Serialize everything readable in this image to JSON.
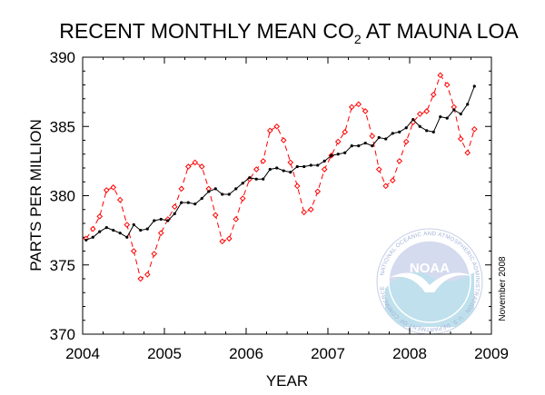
{
  "chart_data": {
    "type": "line",
    "title": {
      "main": "RECENT MONTHLY MEAN CO",
      "subscript": "2",
      "suffix": " AT MAUNA LOA"
    },
    "xlabel": "YEAR",
    "ylabel": "PARTS PER MILLION",
    "xlim": [
      2004,
      2009
    ],
    "ylim": [
      370,
      390
    ],
    "x_ticks": [
      2004,
      2005,
      2006,
      2007,
      2008,
      2009
    ],
    "y_ticks": [
      370,
      375,
      380,
      385,
      390
    ],
    "grid": false,
    "series": [
      {
        "style": "dashed-red-diamond",
        "color": "#ff0000",
        "x": [
          2004.042,
          2004.125,
          2004.208,
          2004.292,
          2004.375,
          2004.458,
          2004.542,
          2004.625,
          2004.708,
          2004.792,
          2004.875,
          2004.958,
          2005.042,
          2005.125,
          2005.208,
          2005.292,
          2005.375,
          2005.458,
          2005.542,
          2005.625,
          2005.708,
          2005.792,
          2005.875,
          2005.958,
          2006.042,
          2006.125,
          2006.208,
          2006.292,
          2006.375,
          2006.458,
          2006.542,
          2006.625,
          2006.708,
          2006.792,
          2006.875,
          2006.958,
          2007.042,
          2007.125,
          2007.208,
          2007.292,
          2007.375,
          2007.458,
          2007.542,
          2007.625,
          2007.708,
          2007.792,
          2007.875,
          2007.958,
          2008.042,
          2008.125,
          2008.208,
          2008.292,
          2008.375,
          2008.458,
          2008.542,
          2008.625,
          2008.708,
          2008.792
        ],
        "values": [
          376.9,
          377.6,
          378.5,
          380.4,
          380.6,
          379.7,
          377.9,
          376.0,
          374.0,
          374.3,
          375.8,
          377.3,
          378.3,
          379.2,
          380.5,
          382.1,
          382.4,
          382.1,
          380.5,
          378.6,
          376.7,
          376.9,
          378.3,
          379.8,
          381.2,
          381.9,
          382.5,
          384.7,
          385.0,
          384.0,
          382.4,
          380.7,
          378.8,
          379.0,
          380.3,
          381.9,
          382.9,
          383.9,
          384.6,
          386.4,
          386.6,
          386.1,
          384.3,
          381.9,
          380.7,
          381.1,
          382.5,
          383.9,
          385.3,
          385.9,
          386.1,
          387.3,
          388.7,
          388.0,
          386.4,
          384.1,
          383.1,
          384.8
        ]
      },
      {
        "style": "solid-black-dot",
        "color": "#000000",
        "x": [
          2004.042,
          2004.125,
          2004.208,
          2004.292,
          2004.375,
          2004.458,
          2004.542,
          2004.625,
          2004.708,
          2004.792,
          2004.875,
          2004.958,
          2005.042,
          2005.125,
          2005.208,
          2005.292,
          2005.375,
          2005.458,
          2005.542,
          2005.625,
          2005.708,
          2005.792,
          2005.875,
          2005.958,
          2006.042,
          2006.125,
          2006.208,
          2006.292,
          2006.375,
          2006.458,
          2006.542,
          2006.625,
          2006.708,
          2006.792,
          2006.875,
          2006.958,
          2007.042,
          2007.125,
          2007.208,
          2007.292,
          2007.375,
          2007.458,
          2007.542,
          2007.625,
          2007.708,
          2007.792,
          2007.875,
          2007.958,
          2008.042,
          2008.125,
          2008.208,
          2008.292,
          2008.375,
          2008.458,
          2008.542,
          2008.625,
          2008.708,
          2008.792
        ],
        "values": [
          376.8,
          377.0,
          377.4,
          377.7,
          377.5,
          377.3,
          377.0,
          377.9,
          377.5,
          377.6,
          378.2,
          378.3,
          378.2,
          378.7,
          379.5,
          379.5,
          379.4,
          379.8,
          380.3,
          380.5,
          380.1,
          380.1,
          380.5,
          380.9,
          381.3,
          381.2,
          381.2,
          381.9,
          382.0,
          381.8,
          381.7,
          382.1,
          382.1,
          382.2,
          382.2,
          382.5,
          382.9,
          383.0,
          383.1,
          383.6,
          383.6,
          383.8,
          383.6,
          384.2,
          384.1,
          384.5,
          384.6,
          384.9,
          385.5,
          385.0,
          384.7,
          384.6,
          385.7,
          385.6,
          386.2,
          385.9,
          386.6,
          387.9
        ]
      }
    ],
    "annotations": {
      "date_credit": "November 2008",
      "logo_text": "NOAA",
      "logo_ring_text": "NATIONAL OCEANIC AND ATMOSPHERIC ADMINISTRATION · U.S. DEPARTMENT OF COMMERCE"
    }
  }
}
